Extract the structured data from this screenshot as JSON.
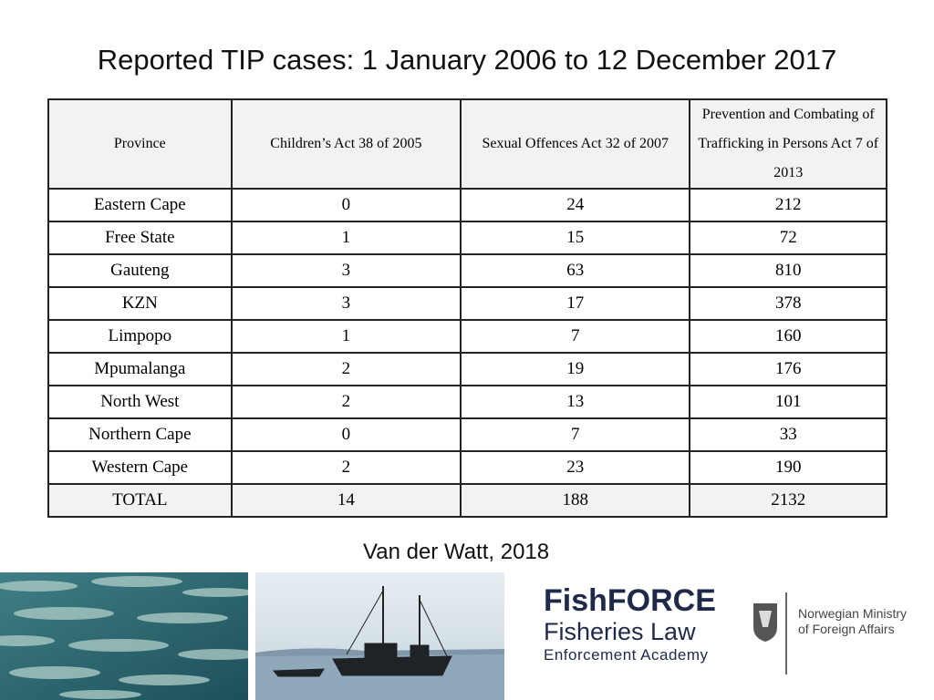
{
  "title": "Reported TIP cases: 1 January 2006 to 12 December 2017",
  "table": {
    "header": [
      "Province",
      "Children’s Act 38 of 2005",
      "Sexual Offences Act 32 of 2007",
      "Prevention and Combating of Trafficking in Persons Act 7 of 2013"
    ],
    "rows": [
      [
        "Eastern Cape",
        0,
        24,
        212
      ],
      [
        "Free State",
        1,
        15,
        72
      ],
      [
        "Gauteng",
        3,
        63,
        810
      ],
      [
        "KZN",
        3,
        17,
        378
      ],
      [
        "Limpopo",
        1,
        7,
        160
      ],
      [
        "Mpumalanga",
        2,
        19,
        176
      ],
      [
        "North West",
        2,
        13,
        101
      ],
      [
        "Northern Cape",
        0,
        7,
        33
      ],
      [
        "Western Cape",
        2,
        23,
        190
      ],
      [
        "TOTAL",
        14,
        188,
        2132
      ]
    ]
  },
  "source": "Van der Watt, 2018",
  "logo": {
    "name": "FishFORCE",
    "line1": "Fisheries Law",
    "line2": "Enforcement Academy"
  },
  "ministry": {
    "line1": "Norwegian Ministry",
    "line2": "of Foreign Affairs"
  }
}
